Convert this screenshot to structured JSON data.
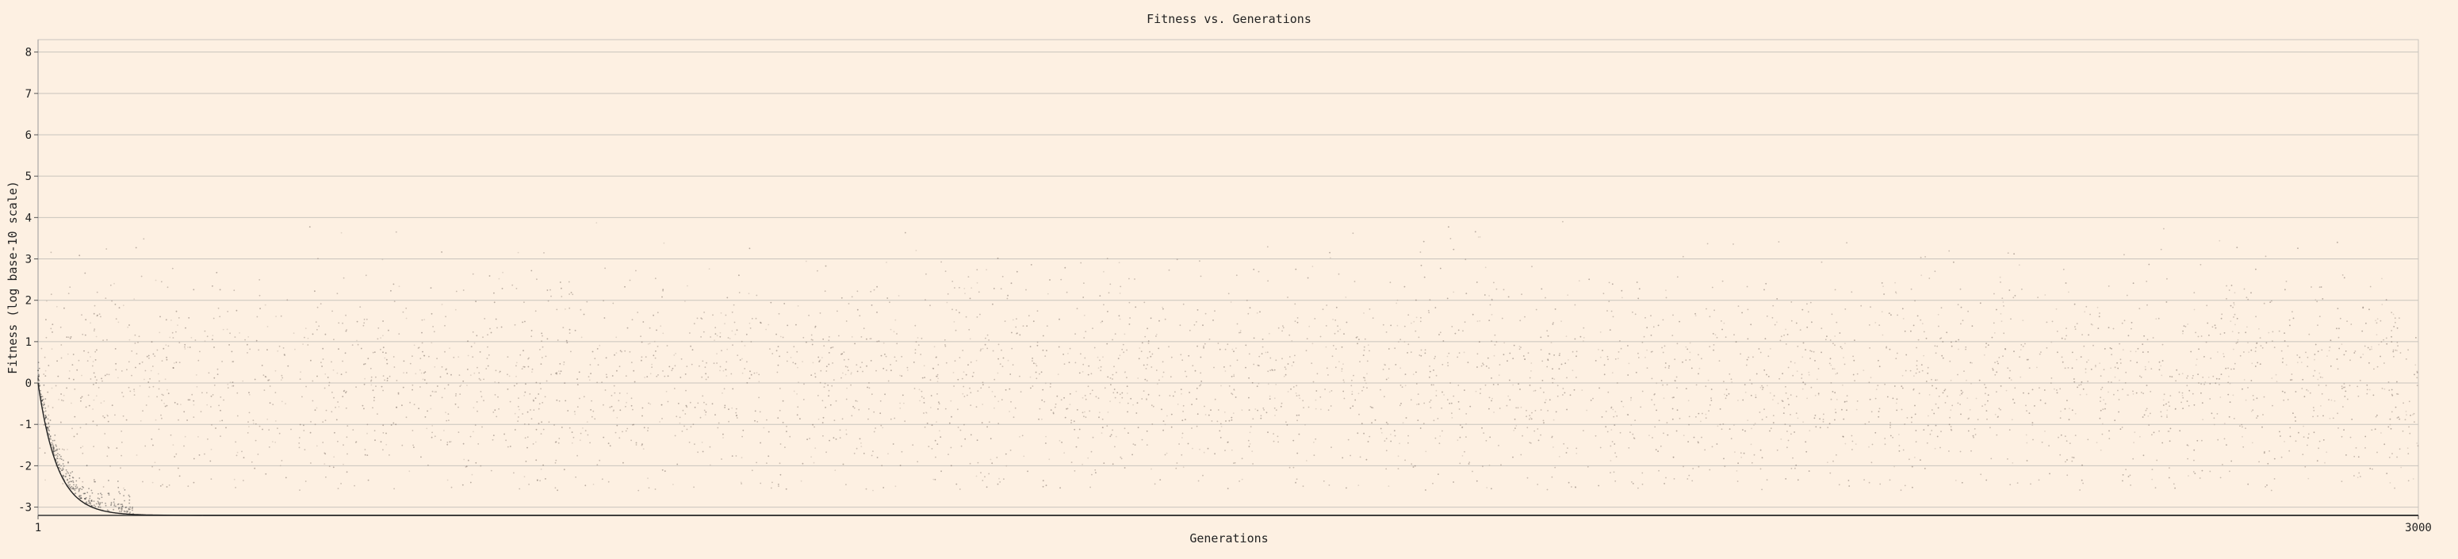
{
  "chart_data": {
    "type": "scatter",
    "title": "Fitness vs. Generations",
    "xlabel": "Generations",
    "ylabel": "Fitness (log base-10 scale)",
    "xlim": [
      1,
      3000
    ],
    "ylim": [
      -3.2,
      8.3
    ],
    "y_scale": "log10",
    "x_ticks": [
      "1",
      "3000"
    ],
    "y_ticks": [
      "8",
      "7",
      "6",
      "5",
      "4",
      "3",
      "2",
      "1",
      "0",
      "-1",
      "-2",
      "-3"
    ],
    "grid": "horizontal",
    "background_color": "#fdf0e2",
    "grid_color": "#c9c4bd",
    "point_color": "#7a6e66",
    "series": [
      {
        "description_values": {
          "population_center_log10": 0.0,
          "population_spread_log10": 1.3,
          "population_max_log10": 3.9,
          "population_min_log10": -2.6,
          "best_fitness_start_log10": 0.0,
          "best_fitness_plateau_log10": -3.2,
          "best_fitness_converged_by_generation": 110
        }
      }
    ]
  }
}
